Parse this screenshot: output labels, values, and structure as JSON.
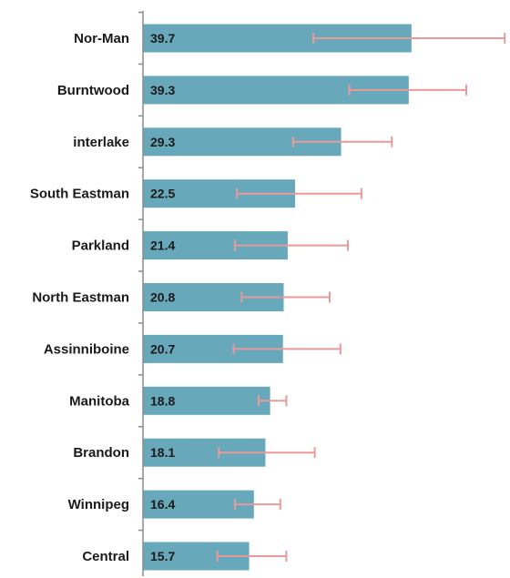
{
  "chart_data": {
    "type": "bar",
    "orientation": "horizontal",
    "title": "",
    "xlabel": "",
    "ylabel": "",
    "categories": [
      "Nor-Man",
      "Burntwood",
      "interlake",
      "South Eastman",
      "Parkland",
      "North Eastman",
      "Assinniboine",
      "Manitoba",
      "Brandon",
      "Winnipeg",
      "Central"
    ],
    "values": [
      39.7,
      39.3,
      29.3,
      22.5,
      21.4,
      20.8,
      20.7,
      18.8,
      18.1,
      16.4,
      15.7
    ],
    "value_labels": [
      "39.7",
      "39.3",
      "29.3",
      "22.5",
      "21.4",
      "20.8",
      "20.7",
      "18.8",
      "18.1",
      "16.4",
      "15.7"
    ],
    "error_low": [
      25.2,
      30.5,
      22.2,
      13.9,
      13.6,
      14.6,
      13.4,
      17.1,
      11.2,
      13.6,
      11.0
    ],
    "error_high": [
      53.5,
      47.8,
      36.8,
      32.3,
      30.3,
      27.6,
      29.2,
      21.2,
      25.4,
      20.3,
      21.2
    ],
    "xlim": [
      0,
      54
    ],
    "grid": false,
    "legend": "none",
    "colors": {
      "bar": "#68a8bb",
      "error_bar": "#e89a9a",
      "axis": "#8c8c8c",
      "text": "#1a1a1a"
    }
  }
}
